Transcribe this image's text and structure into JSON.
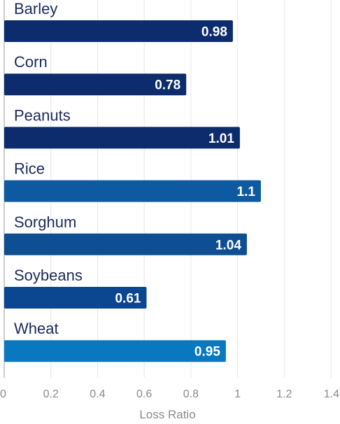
{
  "chart_data": {
    "type": "bar",
    "orientation": "horizontal",
    "categories": [
      "Barley",
      "Corn",
      "Peanuts",
      "Rice",
      "Sorghum",
      "Soybeans",
      "Wheat"
    ],
    "values": [
      0.98,
      0.78,
      1.01,
      1.1,
      1.04,
      0.61,
      0.95
    ],
    "value_labels": [
      "0.98",
      "0.78",
      "1.01",
      "1.1",
      "1.04",
      "0.61",
      "0.95"
    ],
    "colors": [
      "#0d2c6e",
      "#0d2c6e",
      "#0d2c6e",
      "#0e5aa0",
      "#0e4f93",
      "#0b4690",
      "#0a78bf"
    ],
    "xlabel": "Loss Ratio",
    "xlim": [
      0,
      1.4
    ],
    "xticks": [
      0,
      0.2,
      0.4,
      0.6,
      0.8,
      1,
      1.2,
      1.4
    ],
    "xtick_labels": [
      "0",
      "0.2",
      "0.4",
      "0.6",
      "0.8",
      "1",
      "1.2",
      "1.4"
    ],
    "grid": true
  }
}
